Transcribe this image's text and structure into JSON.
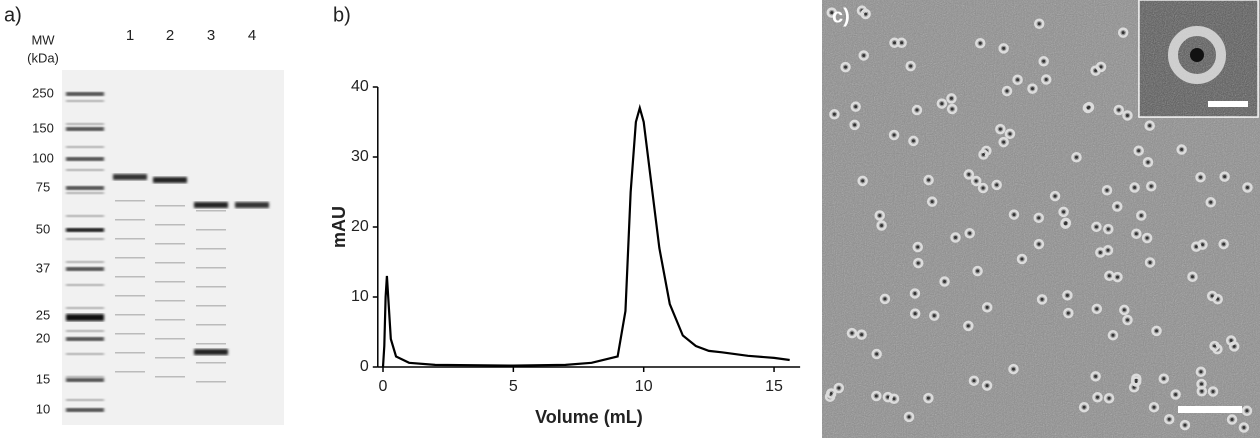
{
  "panel_a": {
    "label": "a)",
    "mw_title": "MW",
    "mw_unit": "(kDa)",
    "ladder": [
      250,
      150,
      100,
      75,
      50,
      37,
      25,
      20,
      15,
      10
    ],
    "lanes": [
      "1",
      "2",
      "3",
      "4"
    ]
  },
  "chart_data": {
    "type": "line",
    "label": "b)",
    "x_label": "Volume (mL)",
    "y_label": "mAU",
    "x": [
      0,
      0.05,
      0.1,
      0.15,
      0.2,
      0.3,
      0.5,
      1,
      2,
      5,
      7,
      8,
      9,
      9.3,
      9.5,
      9.7,
      9.85,
      10,
      10.3,
      10.6,
      11,
      11.5,
      12,
      12.5,
      13,
      14,
      15,
      15.6
    ],
    "values": [
      0,
      3,
      10,
      13,
      10,
      4,
      1.5,
      0.6,
      0.3,
      0.2,
      0.3,
      0.6,
      1.5,
      8,
      25,
      35,
      37,
      35,
      26,
      17,
      9,
      4.5,
      3,
      2.3,
      2.1,
      1.6,
      1.3,
      1.0
    ],
    "color": "#000000",
    "xlim": [
      -0.2,
      16
    ],
    "ylim": [
      0,
      40
    ],
    "xticks": [
      0,
      5,
      10,
      15
    ],
    "yticks": [
      0,
      10,
      20,
      30,
      40
    ]
  },
  "panel_c": {
    "label": "c)"
  }
}
